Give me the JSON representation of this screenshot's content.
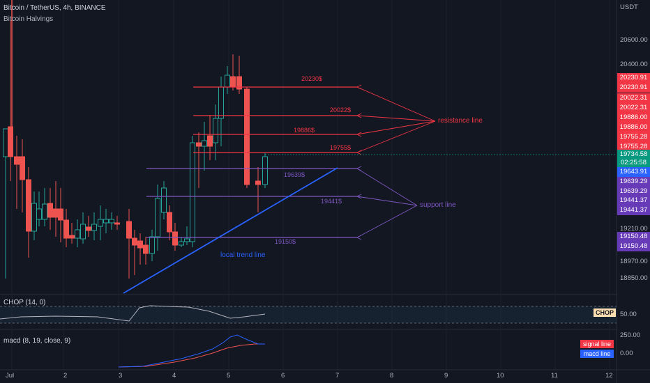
{
  "header": {
    "symbol_line": "Bitcoin / TetherUS, 4h, BINANCE",
    "indicator_line": "Bitcoin Halvings"
  },
  "price_axis": {
    "currency": "USDT",
    "ticks": [
      "20600.00",
      "20400.00",
      "19210.00",
      "18970.00",
      "18850.00"
    ]
  },
  "price_labels": {
    "l1": "20230.91",
    "l2": "20230.91",
    "l3": "20022.31",
    "l4": "20022.31",
    "l5": "19886.00",
    "l6": "19886.00",
    "l7": "19755.28",
    "l8": "19755.28",
    "current_price": "19734.58",
    "countdown": "02:25:58",
    "l9": "19643.91",
    "l10": "19639.29",
    "l11": "19639.29",
    "l12": "19441.37",
    "l13": "19441.37",
    "l14": "19150.48",
    "l15": "19150.48"
  },
  "drawing_labels": {
    "r1": "20230$",
    "r2": "20022$",
    "r3": "19886$",
    "r4": "19755$",
    "s1": "19639$",
    "s2": "19441$",
    "s3": "19150$",
    "resistance": "resistance line",
    "support": "support line",
    "trend": "local trend line"
  },
  "chop": {
    "title": "CHOP (14, 0)",
    "tag": "CHOP",
    "axis_value": "50.00"
  },
  "macd": {
    "title": "macd (8, 19, close, 9)",
    "signal_tag": "signal line",
    "macd_tag": "macd line",
    "tick_high": "250.00",
    "tick_zero": "0.00"
  },
  "time_axis": [
    "Jul",
    "2",
    "3",
    "4",
    "5",
    "6",
    "7",
    "8",
    "9",
    "10",
    "11",
    "12"
  ],
  "colors": {
    "background": "#131722",
    "up": "#26a69a",
    "down": "#ef5350",
    "resistance": "#f23645",
    "support": "#7e57c2",
    "trend": "#2962ff",
    "current": "#089981"
  }
}
